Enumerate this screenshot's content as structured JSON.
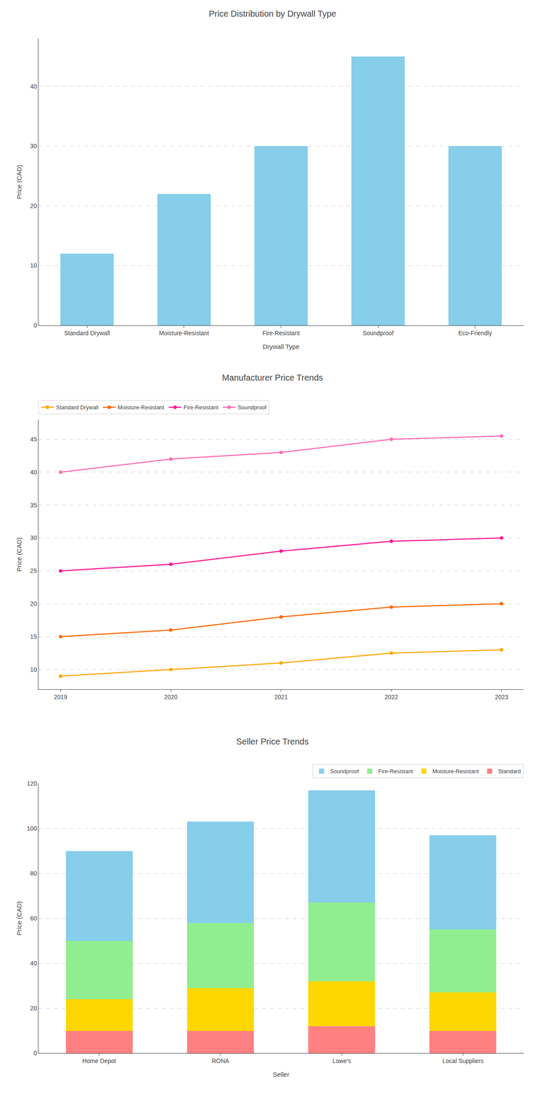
{
  "chart_data": [
    {
      "type": "bar",
      "title": "Price Distribution by Drywall Type",
      "categories": [
        "Standard Drywall",
        "Moisture-Resistant",
        "Fire-Resistant",
        "Soundproof",
        "Eco-Friendly"
      ],
      "values": [
        12,
        22,
        30,
        45,
        30
      ],
      "color": "#87CEEB",
      "xlabel": "Drywall Type",
      "ylabel": "Price (CAD)",
      "ylim": [
        0,
        48
      ],
      "yticks": [
        0,
        10,
        20,
        30,
        40
      ],
      "grid": true
    },
    {
      "type": "line",
      "title": "Manufacturer Price Trends",
      "x": [
        2019,
        2020,
        2021,
        2022,
        2023
      ],
      "xlim": [
        2018.8,
        2023.2
      ],
      "xticks": [
        2019,
        2020,
        2021,
        2022,
        2023
      ],
      "ylabel": "Price (CAD)",
      "ylim": [
        7,
        48
      ],
      "yticks": [
        10,
        15,
        20,
        25,
        30,
        35,
        40,
        45
      ],
      "series": [
        {
          "name": "Standard Drywall",
          "color": "#FFA500",
          "values": [
            9,
            10,
            11,
            12.5,
            13
          ]
        },
        {
          "name": "Moisture-Resistant",
          "color": "#FF6600",
          "values": [
            15,
            16,
            18,
            19.5,
            20
          ]
        },
        {
          "name": "Fire-Resistant",
          "color": "#FF1493",
          "values": [
            25,
            26,
            28,
            29.5,
            30
          ]
        },
        {
          "name": "Soundproof",
          "color": "#FF69B4",
          "values": [
            40,
            42,
            43,
            45,
            45.5
          ]
        }
      ],
      "marker": "circle",
      "grid": true,
      "legend": "upper left"
    },
    {
      "type": "bar",
      "stacked": true,
      "title": "Seller Price Trends",
      "categories": [
        "Home Depot",
        "RONA",
        "Lowe's",
        "Local Suppliers"
      ],
      "xlabel": "Seller",
      "ylabel": "Price (CAD)",
      "series": [
        {
          "name": "Standard",
          "color": "#FF8080",
          "values": [
            10,
            10,
            12,
            10
          ]
        },
        {
          "name": "Moisture-Resistant",
          "color": "#FFD700",
          "values": [
            14,
            19,
            20,
            17
          ]
        },
        {
          "name": "Fire-Resistant",
          "color": "#90EE90",
          "values": [
            26,
            29,
            35,
            28
          ]
        },
        {
          "name": "Soundproof",
          "color": "#87CEEB",
          "values": [
            40,
            45,
            50,
            42
          ]
        }
      ],
      "ylim": [
        0,
        120
      ],
      "yticks": [
        0,
        20,
        40,
        60,
        80,
        100,
        120
      ],
      "grid": true,
      "legend": "upper right"
    }
  ]
}
